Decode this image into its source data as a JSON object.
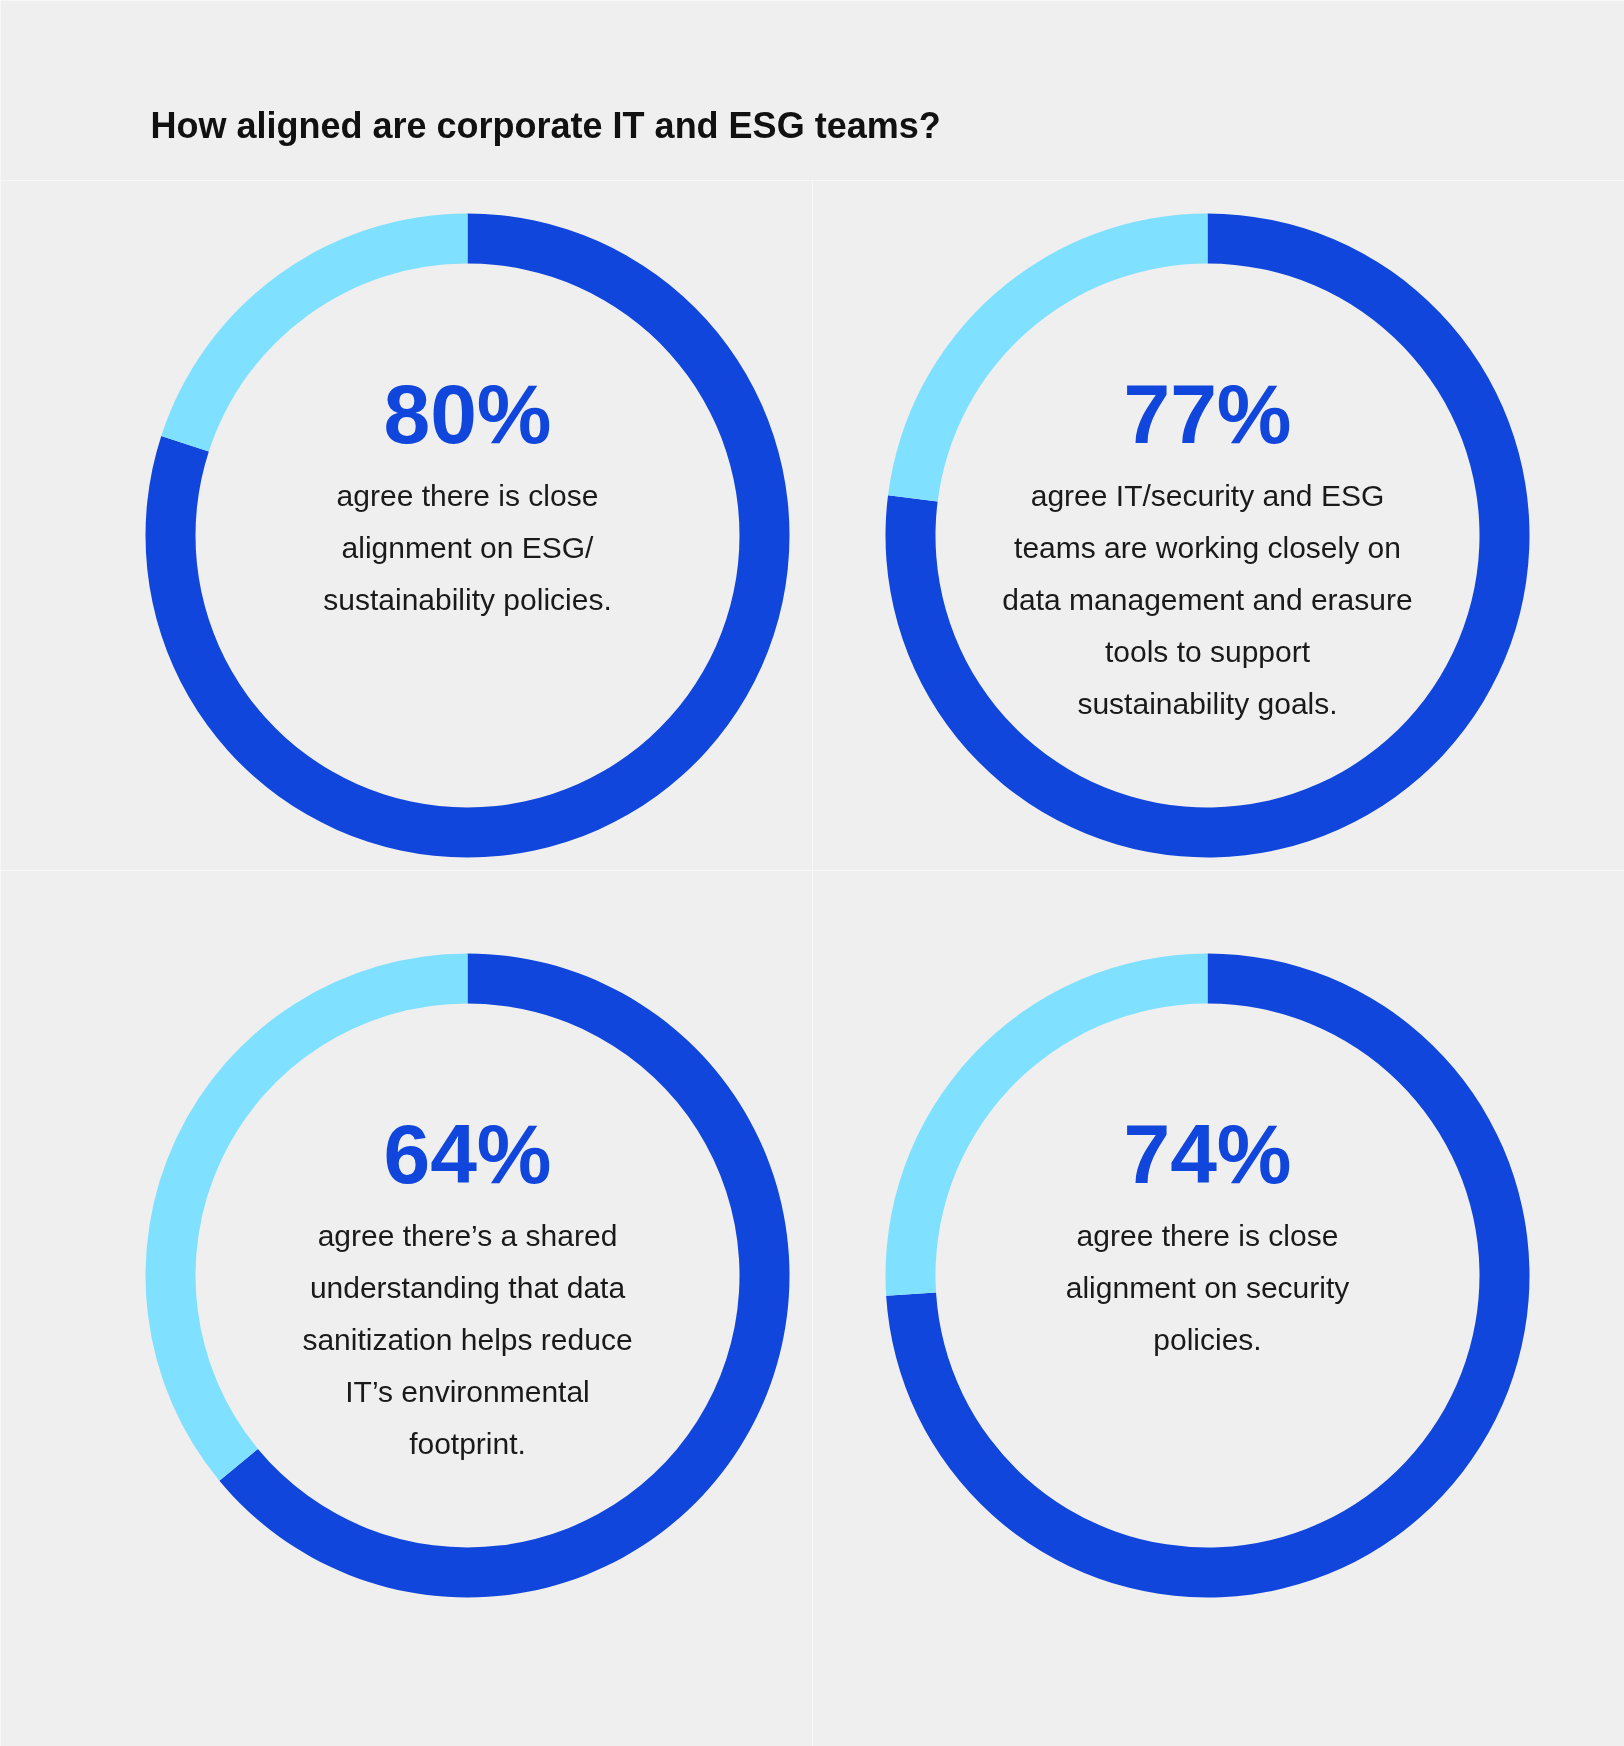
{
  "chart_data": [
    {
      "type": "donut",
      "title": "How aligned are corporate IT and ESG teams?",
      "categories": [
        null,
        null
      ],
      "values": [
        80,
        20
      ],
      "colors": [
        "#1046db",
        "#80e0ff"
      ],
      "value_labels": [
        "80%",
        null
      ],
      "annotations": [
        "agree there is close alignment on ESG/ sustainability policies."
      ]
    },
    {
      "type": "donut",
      "categories": [
        null,
        null
      ],
      "values": [
        77,
        23
      ],
      "colors": [
        "#1046db",
        "#80e0ff"
      ],
      "value_labels": [
        "77%",
        null
      ],
      "annotations": [
        "agree IT/security and ESG teams are working closely on data management and erasure tools to support sustainability goals."
      ]
    },
    {
      "type": "donut",
      "categories": [
        null,
        null
      ],
      "values": [
        64,
        36
      ],
      "colors": [
        "#1046db",
        "#80e0ff"
      ],
      "value_labels": [
        "64%",
        null
      ],
      "annotations": [
        "agree there’s a shared understanding that data sanitization helps reduce IT’s environmental footprint."
      ]
    },
    {
      "type": "donut",
      "categories": [
        null,
        null
      ],
      "values": [
        74,
        26
      ],
      "colors": [
        "#1046db",
        "#80e0ff"
      ],
      "value_labels": [
        "74%",
        null
      ],
      "annotations": [
        "agree there is close alignment on security policies."
      ]
    }
  ]
}
